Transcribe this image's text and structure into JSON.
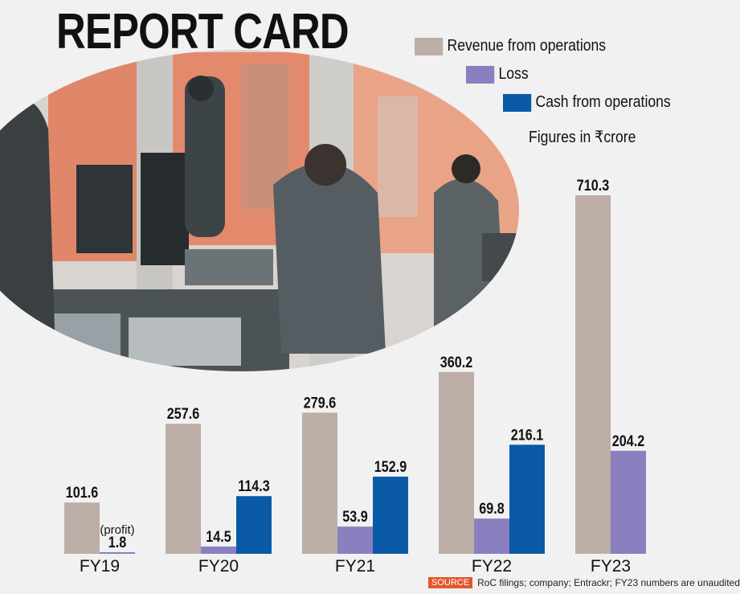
{
  "title": "REPORT CARD",
  "legend": {
    "revenue": "Revenue from operations",
    "loss": "Loss",
    "cash": "Cash from operations",
    "units": "Figures in ₹crore"
  },
  "colors": {
    "revenue": "#bcaea7",
    "loss": "#8a80bf",
    "cash": "#0b5aa8",
    "source_tag": "#e4572e"
  },
  "footnote": {
    "tag": "SOURCE",
    "text": "RoC filings; company; Entrackr; FY23 numbers are unaudited"
  },
  "chart_data": {
    "type": "bar",
    "title": "REPORT CARD",
    "ylabel": "Figures in ₹crore",
    "categories": [
      "FY19",
      "FY20",
      "FY21",
      "FY22",
      "FY23"
    ],
    "series": [
      {
        "name": "Revenue from operations",
        "values": [
          101.6,
          257.6,
          279.6,
          360.2,
          710.3
        ]
      },
      {
        "name": "Loss",
        "values": [
          1.8,
          14.5,
          53.9,
          69.8,
          204.2
        ]
      },
      {
        "name": "Cash from operations",
        "values": [
          null,
          114.3,
          152.9,
          216.1,
          null
        ]
      }
    ],
    "annotations": [
      {
        "category": "FY19",
        "series": "Loss",
        "text": "(profit)"
      }
    ],
    "ylim": [
      0,
      720
    ],
    "grid": false
  }
}
